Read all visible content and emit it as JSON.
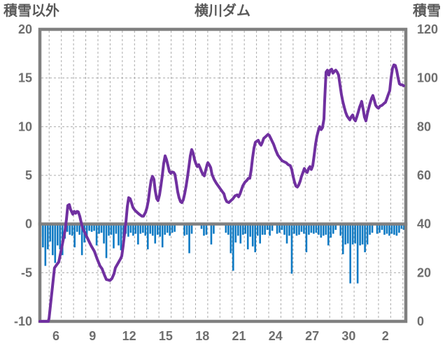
{
  "header": {
    "left_label": "積雪以外",
    "title": "横川ダム",
    "right_label": "積雪"
  },
  "colors": {
    "snow_line": "#7030a0",
    "non_snow_bar": "#0e7ac4",
    "axis_frame": "#808080",
    "zero_baseline": "#808080",
    "gridline": "#ababab",
    "tick_text": "#6e6e6e",
    "title_text": "#595959",
    "background": "#ffffff"
  },
  "chart_data": {
    "type": "line+bar",
    "title": "横川ダム",
    "legend": "none",
    "grid": "dashed, daily vertical lines and 5-unit horizontal lines",
    "x_axis": {
      "note": "t = days from left edge of window; tick labels are day-of-month spanning a month boundary",
      "t_range": [
        0,
        30
      ],
      "tick_labels": [
        "6",
        "9",
        "12",
        "15",
        "18",
        "21",
        "24",
        "27",
        "30",
        "2"
      ],
      "tick_t": [
        1.32,
        4.32,
        7.32,
        10.32,
        13.32,
        16.32,
        19.32,
        22.32,
        25.32,
        28.32
      ],
      "gridline_start_t": 0.76,
      "gridline_step_t": 1,
      "gridline_count": 30
    },
    "left_axis": {
      "label": "積雪以外",
      "range": [
        -10,
        20
      ],
      "ticks": [
        20,
        15,
        10,
        5,
        0,
        -5,
        -10
      ],
      "gridline_values": [
        15,
        10,
        5,
        -5
      ]
    },
    "right_axis": {
      "label": "積雪",
      "range": [
        0,
        120
      ],
      "ticks": [
        120,
        100,
        80,
        60,
        40,
        20,
        0
      ]
    },
    "series": [
      {
        "name": "積雪",
        "type": "line",
        "axis": "right",
        "color": "#7030a0",
        "t": [
          0,
          0.69,
          0.75,
          1.2,
          1.43,
          1.55,
          1.78,
          2.06,
          2.18,
          2.29,
          2.41,
          2.52,
          2.7,
          2.81,
          2.93,
          3.04,
          3.15,
          3.27,
          3.38,
          3.5,
          3.73,
          3.96,
          4.19,
          4.47,
          4.7,
          4.93,
          5.1,
          5.28,
          5.45,
          5.62,
          5.74,
          5.91,
          6.08,
          6.19,
          6.42,
          6.6,
          6.71,
          6.83,
          6.94,
          7.06,
          7.17,
          7.28,
          7.4,
          7.51,
          7.63,
          7.8,
          7.97,
          8.15,
          8.37,
          8.49,
          8.66,
          8.78,
          8.89,
          9.01,
          9.12,
          9.23,
          9.35,
          9.46,
          9.58,
          9.69,
          9.81,
          9.92,
          10.04,
          10.15,
          10.27,
          10.38,
          10.5,
          10.61,
          10.73,
          10.84,
          10.96,
          11.07,
          11.18,
          11.3,
          11.41,
          11.53,
          11.64,
          11.76,
          11.87,
          11.99,
          12.1,
          12.22,
          12.33,
          12.45,
          12.56,
          12.68,
          12.79,
          12.91,
          13.02,
          13.13,
          13.25,
          13.36,
          13.48,
          13.59,
          13.71,
          13.77,
          13.88,
          14.0,
          14.11,
          14.28,
          14.46,
          14.63,
          14.8,
          14.97,
          15.09,
          15.2,
          15.32,
          15.49,
          15.66,
          15.83,
          16.0,
          16.18,
          16.29,
          16.41,
          16.52,
          16.63,
          16.81,
          16.98,
          17.09,
          17.21,
          17.32,
          17.44,
          17.55,
          17.67,
          17.78,
          17.9,
          18.01,
          18.13,
          18.24,
          18.35,
          18.53,
          18.7,
          18.81,
          18.93,
          19.04,
          19.16,
          19.33,
          19.5,
          19.67,
          19.85,
          20.02,
          20.19,
          20.36,
          20.53,
          20.65,
          20.76,
          20.88,
          20.99,
          21.11,
          21.22,
          21.34,
          21.45,
          21.57,
          21.68,
          21.8,
          21.91,
          22.03,
          22.14,
          22.25,
          22.37,
          22.48,
          22.6,
          22.71,
          22.83,
          22.94,
          23.06,
          23.17,
          23.29,
          23.34,
          23.4,
          23.46,
          23.57,
          23.69,
          23.8,
          23.92,
          24.03,
          24.15,
          24.26,
          24.38,
          24.49,
          24.6,
          24.72,
          24.83,
          24.95,
          25.06,
          25.18,
          25.29,
          25.41,
          25.52,
          25.64,
          25.75,
          25.87,
          25.98,
          26.1,
          26.21,
          26.33,
          26.38,
          26.5,
          26.61,
          26.73,
          26.84,
          26.96,
          27.07,
          27.19,
          27.3,
          27.42,
          27.53,
          27.65,
          27.76,
          27.88,
          28.05,
          28.22,
          28.33,
          28.45,
          28.56,
          28.68,
          28.79,
          28.91,
          29.02,
          29.14,
          29.25,
          29.37,
          29.48,
          29.6,
          29.71,
          29.83
        ],
        "values_cm": [
          0,
          0,
          1.2,
          22,
          23.6,
          24.4,
          30,
          37.2,
          42,
          47.6,
          48,
          46,
          44,
          45.2,
          44.4,
          45.2,
          45,
          43.2,
          40.8,
          38.4,
          36,
          33.6,
          31.2,
          28.8,
          25.6,
          22.8,
          21.6,
          19.2,
          17.2,
          17.0,
          16.8,
          17.6,
          19.6,
          22,
          24,
          25.6,
          26.8,
          31.2,
          36,
          41.2,
          47.2,
          50.8,
          50.4,
          48.8,
          46.8,
          45.6,
          44.8,
          44,
          43.2,
          43.2,
          44.8,
          46.8,
          49.6,
          54.4,
          58,
          59.6,
          58.4,
          53.6,
          50.4,
          49.6,
          52,
          55.6,
          60,
          64.8,
          68,
          66.4,
          64,
          61.6,
          60.8,
          61.4,
          61.2,
          60.4,
          57.2,
          53.2,
          50.8,
          49.2,
          48.8,
          50,
          52.4,
          55.6,
          59.2,
          63.6,
          68,
          70.6,
          69.2,
          66.4,
          64.8,
          63.6,
          64.4,
          63.2,
          61.6,
          60.4,
          59.8,
          62,
          64.4,
          65.2,
          64.4,
          63.2,
          60.4,
          58.4,
          56.8,
          55.6,
          54.4,
          53.2,
          52.4,
          50.4,
          49.2,
          48.8,
          49.6,
          50.4,
          51.6,
          52,
          51.2,
          52.4,
          54,
          55.6,
          57.2,
          58,
          58.8,
          58.8,
          62,
          67.2,
          71.2,
          73.6,
          74,
          74.4,
          73.2,
          72.4,
          73.6,
          75.2,
          76,
          76.8,
          76.4,
          75.2,
          74,
          72.8,
          70.4,
          68.4,
          67.2,
          66,
          65.6,
          65.2,
          64.4,
          64,
          62.4,
          59.6,
          57.2,
          55.6,
          55.2,
          56,
          57.6,
          59.6,
          61.2,
          62.8,
          61.6,
          61.2,
          62.8,
          63.6,
          62.4,
          64,
          68,
          72.8,
          76,
          78.4,
          80,
          78.8,
          79.6,
          83.2,
          90,
          96,
          102.4,
          103.2,
          101.2,
          103.2,
          103.6,
          102,
          102.8,
          103.2,
          102.4,
          101.2,
          97.2,
          93.2,
          90.4,
          88,
          86,
          84.4,
          83.6,
          82.8,
          84,
          84.8,
          83.2,
          82.4,
          84,
          86,
          88,
          89.6,
          90.4,
          87.2,
          84,
          82.4,
          85.2,
          87.6,
          89.6,
          91.6,
          92.8,
          90.8,
          88.8,
          88,
          87.6,
          88.4,
          88.8,
          89.6,
          90,
          91.6,
          93.2,
          94.8,
          100,
          104,
          105.4,
          105.2,
          103.2,
          100,
          97.6,
          97.2,
          97.2,
          96.8
        ]
      },
      {
        "name": "積雪以外",
        "type": "bar",
        "axis": "left",
        "color": "#0e7ac4",
        "t0": 0.05,
        "dt": 0.2,
        "values": [
          -1.3,
          -2.4,
          -4.3,
          -2.6,
          -1.8,
          -3.2,
          -4.0,
          -2.2,
          -2.6,
          -3.2,
          -1.5,
          -0.8,
          -1.1,
          -1.2,
          -2.4,
          -0.8,
          -1.1,
          -3.2,
          -1.9,
          -1.2,
          -0.7,
          -0.8,
          -0.7,
          -2.2,
          -1.0,
          -0.9,
          -2.0,
          -3.5,
          -1.2,
          -1.1,
          -2.5,
          -1.0,
          -2.2,
          -2.7,
          -1.4,
          -1.0,
          -1.3,
          -0.9,
          -1.2,
          -1.0,
          -2.1,
          -1.0,
          -0.9,
          -1.2,
          -2.6,
          -1.0,
          -1.2,
          -2.0,
          -1.1,
          -1.3,
          -2.4,
          -1.1,
          -0.9,
          -1.2,
          -0.9,
          -0.8,
          0,
          0,
          0,
          -1.2,
          -1.1,
          -3.0,
          -1.0,
          0,
          0,
          0,
          -0.5,
          -1.2,
          -1.1,
          0,
          -2.1,
          -1.0,
          0,
          0,
          0,
          0,
          -0.9,
          -1.1,
          -3.0,
          -4.8,
          -1.9,
          -1.2,
          -2.0,
          -1.1,
          -1.0,
          -2.6,
          -1.3,
          -2.3,
          -2.9,
          -1.2,
          -2.0,
          -1.1,
          -1.1,
          -0.6,
          -1.2,
          -0.7,
          0,
          -1.0,
          -0.9,
          -0.6,
          -1.1,
          -2.0,
          -1.2,
          -5.1,
          -1.0,
          -1.2,
          -1.1,
          -0.8,
          -1.0,
          -2.9,
          -1.1,
          -0.9,
          -1.0,
          -0.9,
          -1.1,
          -1.4,
          -1.2,
          -1.1,
          -2.2,
          -1.4,
          -1.0,
          -0.6,
          0,
          -1.2,
          -3.1,
          -2.1,
          -2.0,
          -6.1,
          -2.1,
          -2.0,
          -6.1,
          -2.2,
          -2.1,
          -2.9,
          -2.1,
          -1.1,
          -0.9,
          0,
          -1.0,
          -0.9,
          -0.6,
          -1.1,
          -1.0,
          -1.2,
          -1.0,
          -1.1,
          -1.2,
          -0.9,
          -0.5,
          -0.6
        ]
      }
    ]
  }
}
